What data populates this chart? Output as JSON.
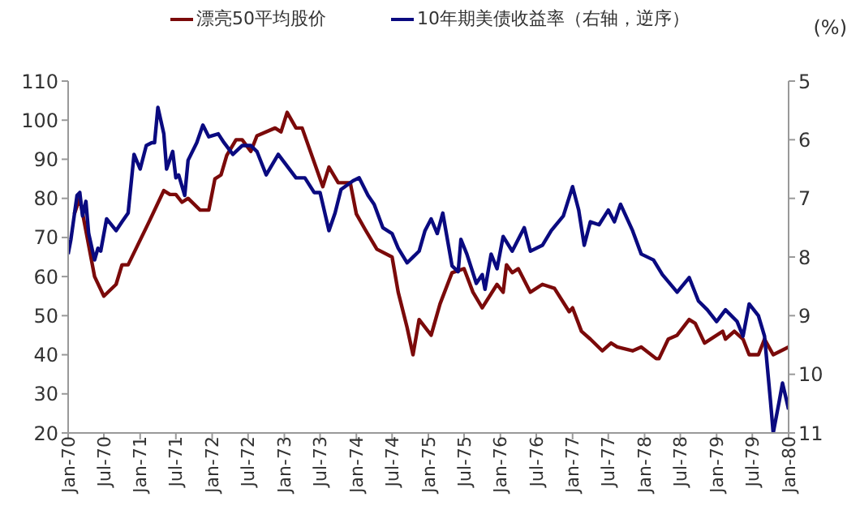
{
  "chart_data": {
    "type": "line",
    "legend": "top",
    "y2label": "(%)",
    "line_style": "solid",
    "marker": "none",
    "xlim": [
      "1970-01-01",
      "1980-01-01"
    ],
    "xticks": [
      {
        "value": "1970-01",
        "label": "Jan-70"
      },
      {
        "value": "1970-07",
        "label": "Jul-70"
      },
      {
        "value": "1971-01",
        "label": "Jan-71"
      },
      {
        "value": "1971-07",
        "label": "Jul-71"
      },
      {
        "value": "1972-01",
        "label": "Jan-72"
      },
      {
        "value": "1972-07",
        "label": "Jul-72"
      },
      {
        "value": "1973-01",
        "label": "Jan-73"
      },
      {
        "value": "1973-07",
        "label": "Jul-73"
      },
      {
        "value": "1974-01",
        "label": "Jan-74"
      },
      {
        "value": "1974-07",
        "label": "Jul-74"
      },
      {
        "value": "1975-01",
        "label": "Jan-75"
      },
      {
        "value": "1975-07",
        "label": "Jul-75"
      },
      {
        "value": "1976-01",
        "label": "Jan-76"
      },
      {
        "value": "1976-07",
        "label": "Jul-76"
      },
      {
        "value": "1977-01",
        "label": "Jan-77"
      },
      {
        "value": "1977-07",
        "label": "Jul-77"
      },
      {
        "value": "1978-01",
        "label": "Jan-78"
      },
      {
        "value": "1978-07",
        "label": "Jul-78"
      },
      {
        "value": "1979-01",
        "label": "Jan-79"
      },
      {
        "value": "1979-07",
        "label": "Jul-79"
      },
      {
        "value": "1980-01",
        "label": "Jan-80"
      }
    ],
    "ylim": [
      20,
      110
    ],
    "yticks": [
      20,
      30,
      40,
      50,
      60,
      70,
      80,
      90,
      100,
      110
    ],
    "y2lim": [
      11,
      5
    ],
    "y2ticks": [
      5,
      6,
      7,
      8,
      9,
      10,
      11
    ],
    "series": [
      {
        "name": "漂亮50平均股价",
        "color": "#7b0a0a",
        "x": [
          "1970-02-01",
          "1970-03-01",
          "1970-05-15",
          "1970-07-01",
          "1970-09-01",
          "1970-10-01",
          "1970-11-01",
          "1971-02-15",
          "1971-05-01",
          "1971-06-01",
          "1971-07-01",
          "1971-08-01",
          "1971-09-01",
          "1971-11-01",
          "1971-12-15",
          "1972-01-15",
          "1972-02-15",
          "1972-03-15",
          "1972-05-01",
          "1972-06-01",
          "1972-07-15",
          "1972-08-15",
          "1972-11-15",
          "1972-12-15",
          "1973-01-15",
          "1973-03-01",
          "1973-04-01",
          "1973-07-15",
          "1973-08-15",
          "1973-10-01",
          "1973-12-01",
          "1974-01-01",
          "1974-02-15",
          "1974-04-15",
          "1974-07-01",
          "1974-08-01",
          "1974-09-15",
          "1974-10-15",
          "1974-11-15",
          "1975-01-15",
          "1975-03-01",
          "1975-05-01",
          "1975-07-01",
          "1975-08-15",
          "1975-10-01",
          "1975-12-15",
          "1976-01-15",
          "1976-02-01",
          "1976-03-01",
          "1976-04-01",
          "1976-06-01",
          "1976-08-01",
          "1976-10-01",
          "1976-12-15",
          "1977-01-01",
          "1977-02-15",
          "1977-04-01",
          "1977-06-01",
          "1977-07-15",
          "1977-08-15",
          "1977-11-01",
          "1977-12-15",
          "1978-03-01",
          "1978-03-15",
          "1978-05-01",
          "1978-06-15",
          "1978-08-15",
          "1978-09-15",
          "1978-11-01",
          "1979-02-01",
          "1979-02-15",
          "1979-04-01",
          "1979-05-15",
          "1979-06-15",
          "1979-08-01",
          "1979-09-01",
          "1979-10-15",
          "1980-01-01"
        ],
        "values": [
          76,
          80,
          60,
          55,
          58,
          63,
          63,
          74,
          82,
          81,
          81,
          79,
          80,
          77,
          77,
          85,
          86,
          91,
          95,
          95,
          92,
          96,
          98,
          97,
          102,
          98,
          98,
          83,
          88,
          84,
          84,
          76,
          72,
          67,
          65,
          56,
          47,
          40,
          49,
          45,
          53,
          61,
          62,
          56,
          52,
          58,
          56,
          63,
          61,
          62,
          56,
          58,
          57,
          51,
          52,
          46,
          44,
          41,
          43,
          42,
          41,
          42,
          39,
          39,
          44,
          45,
          49,
          48,
          43,
          46,
          44,
          46,
          44,
          40,
          40,
          44,
          40,
          42
        ]
      },
      {
        "name": "10年期美债收益率（右轴，逆序）",
        "color": "#0a0a80",
        "axis": "y2",
        "x": [
          "1970-01-01",
          "1970-01-15",
          "1970-02-15",
          "1970-03-01",
          "1970-03-15",
          "1970-04-01",
          "1970-04-15",
          "1970-05-15",
          "1970-06-01",
          "1970-06-15",
          "1970-07-15",
          "1970-09-01",
          "1970-10-01",
          "1970-11-01",
          "1970-12-01",
          "1971-01-01",
          "1971-02-01",
          "1971-03-01",
          "1971-03-15",
          "1971-04-01",
          "1971-05-01",
          "1971-05-15",
          "1971-06-15",
          "1971-07-01",
          "1971-07-15",
          "1971-08-15",
          "1971-09-01",
          "1971-10-15",
          "1971-11-15",
          "1971-12-15",
          "1972-02-01",
          "1972-03-01",
          "1972-04-15",
          "1972-06-01",
          "1972-07-15",
          "1972-08-15",
          "1972-10-01",
          "1972-12-01",
          "1973-01-15",
          "1973-03-01",
          "1973-04-15",
          "1973-06-01",
          "1973-07-01",
          "1973-08-15",
          "1973-09-15",
          "1973-10-15",
          "1973-12-15",
          "1974-01-15",
          "1974-03-01",
          "1974-04-01",
          "1974-05-15",
          "1974-07-01",
          "1974-08-01",
          "1974-09-15",
          "1974-11-15",
          "1974-12-15",
          "1975-01-15",
          "1975-02-15",
          "1975-03-15",
          "1975-05-01",
          "1975-06-01",
          "1975-06-15",
          "1975-07-15",
          "1975-09-01",
          "1975-10-01",
          "1975-10-15",
          "1975-11-15",
          "1975-12-15",
          "1976-01-15",
          "1976-03-01",
          "1976-05-01",
          "1976-06-01",
          "1976-08-01",
          "1976-09-15",
          "1976-11-15",
          "1977-01-01",
          "1977-02-01",
          "1977-03-01",
          "1977-04-01",
          "1977-05-15",
          "1977-07-01",
          "1977-08-01",
          "1977-09-01",
          "1977-11-01",
          "1977-12-15",
          "1978-02-15",
          "1978-04-01",
          "1978-06-15",
          "1978-08-15",
          "1978-10-01",
          "1978-11-15",
          "1979-01-01",
          "1979-02-15",
          "1979-04-15",
          "1979-05-15",
          "1979-06-15",
          "1979-08-01",
          "1979-09-01",
          "1979-10-01",
          "1979-10-15",
          "1979-11-15",
          "1979-12-01",
          "1979-12-15",
          "1980-01-01"
        ],
        "values": [
          7.95,
          7.7,
          6.95,
          6.9,
          7.3,
          7.05,
          7.6,
          8.05,
          7.85,
          7.9,
          7.35,
          7.55,
          7.4,
          7.25,
          6.25,
          6.5,
          6.1,
          6.05,
          6.05,
          5.45,
          5.9,
          6.5,
          6.2,
          6.65,
          6.6,
          6.95,
          6.35,
          6.05,
          5.75,
          5.95,
          5.9,
          6.05,
          6.25,
          6.1,
          6.1,
          6.2,
          6.6,
          6.25,
          6.45,
          6.65,
          6.65,
          6.9,
          6.9,
          7.55,
          7.25,
          6.85,
          6.7,
          6.65,
          6.95,
          7.1,
          7.5,
          7.6,
          7.85,
          8.1,
          7.9,
          7.55,
          7.35,
          7.6,
          7.25,
          8.15,
          8.25,
          7.7,
          7.95,
          8.45,
          8.3,
          8.55,
          7.95,
          8.2,
          7.65,
          7.9,
          7.5,
          7.9,
          7.8,
          7.55,
          7.3,
          6.8,
          7.2,
          7.8,
          7.4,
          7.45,
          7.2,
          7.4,
          7.1,
          7.55,
          7.95,
          8.05,
          8.3,
          8.6,
          8.35,
          8.75,
          8.9,
          9.1,
          8.9,
          9.1,
          9.35,
          8.8,
          9.0,
          9.35,
          10.45,
          11.0,
          10.45,
          10.15,
          10.35,
          10.6
        ]
      }
    ]
  }
}
